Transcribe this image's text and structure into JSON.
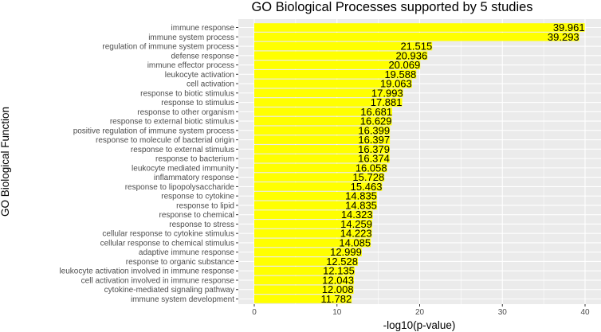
{
  "chart_data": {
    "type": "bar",
    "orientation": "horizontal",
    "title": "GO Biological Processes supported by 5 studies",
    "xlabel": "-log10(p-value)",
    "ylabel": "GO Biological Function",
    "xlim": [
      0,
      40
    ],
    "xticks": [
      "0",
      "10",
      "20",
      "30",
      "40"
    ],
    "grid": true,
    "bar_color": "#ffff00",
    "panel_color": "#ebebeb",
    "categories": [
      "immune response",
      "immune system process",
      "regulation of immune system process",
      "defense response",
      "immune effector process",
      "leukocyte activation",
      "cell activation",
      "response to biotic stimulus",
      "response to stimulus",
      "response to other organism",
      "response to external biotic stimulus",
      "positive regulation of immune system process",
      "response to molecule of bacterial origin",
      "response to external stimulus",
      "response to bacterium",
      "leukocyte mediated immunity",
      "inflammatory response",
      "response to lipopolysaccharide",
      "response to cytokine",
      "response to lipid",
      "response to chemical",
      "response to stress",
      "cellular response to cytokine stimulus",
      "cellular response to chemical stimulus",
      "adaptive immune response",
      "response to organic substance",
      "leukocyte activation involved in immune response",
      "cell activation involved in immune response",
      "cytokine-mediated signaling pathway",
      "immune system development"
    ],
    "values": [
      39.961,
      39.293,
      21.515,
      20.936,
      20.069,
      19.588,
      19.063,
      17.993,
      17.881,
      16.681,
      16.629,
      16.399,
      16.397,
      16.379,
      16.374,
      16.058,
      15.728,
      15.463,
      14.835,
      14.835,
      14.323,
      14.259,
      14.223,
      14.085,
      12.999,
      12.528,
      12.135,
      12.043,
      12.008,
      11.782
    ],
    "value_labels": [
      "39.961",
      "39.293",
      "21.515",
      "20.936",
      "20.069",
      "19.588",
      "19.063",
      "17.993",
      "17.881",
      "16.681",
      "16.629",
      "16.399",
      "16.397",
      "16.379",
      "16.374",
      "16.058",
      "15.728",
      "15.463",
      "14.835",
      "14.835",
      "14.323",
      "14.259",
      "14.223",
      "14.085",
      "12.999",
      "12.528",
      "12.135",
      "12.043",
      "12.008",
      "11.782"
    ]
  }
}
